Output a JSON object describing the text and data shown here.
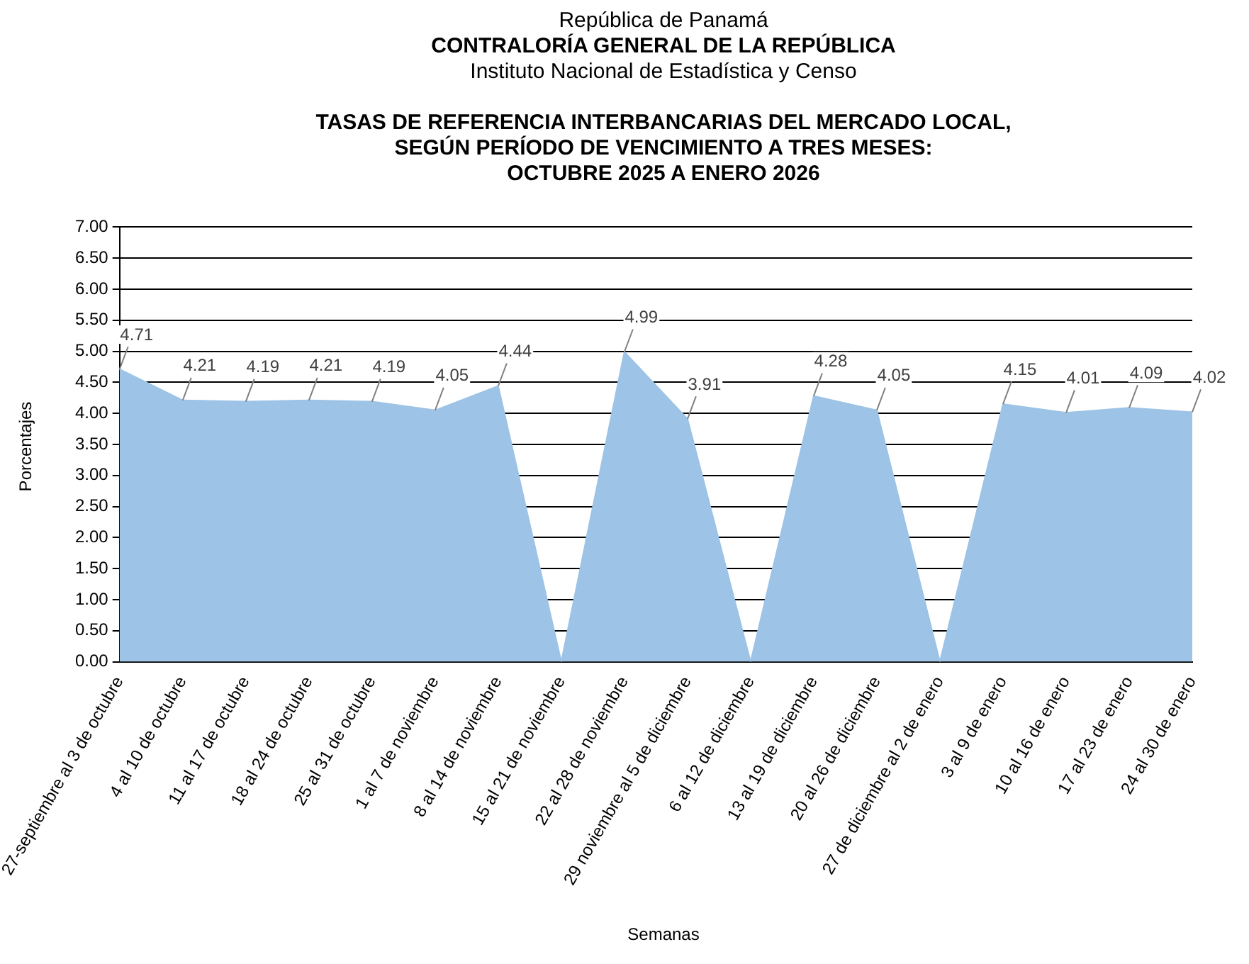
{
  "chart_data": {
    "type": "area",
    "title": "TASAS DE REFERENCIA INTERBANCARIAS DEL MERCADO LOCAL,\nSEGÚN PERÍODO DE VENCIMIENTO A TRES MESES:\nOCTUBRE 2025 A ENERO 2026",
    "annotations": [
      "República de Panamá",
      "CONTRALORÍA GENERAL DE LA REPÚBLICA",
      "Instituto  Nacional de Estadística y Censo"
    ],
    "xlabel": "Semanas",
    "ylabel": "Porcentajes",
    "categories": [
      "27-septiembre al 3 de octubre",
      "4 al 10 de octubre",
      "11 al 17 de octubre",
      "18 al 24 de octubre",
      "25 al 31 de octubre",
      "1 al 7 de noviembre",
      "8 al 14 de noviembre",
      "15 al 21 de noviembre",
      "22 al 28 de noviembre",
      "29 noviembre al 5 de diciembre",
      "6 al 12 de diciembre",
      "13 al 19 de diciembre",
      "20 al 26 de diciembre",
      "27 de diciembre al 2 de enero",
      "3 al 9 de enero",
      "10 al 16 de enero",
      "17 al 23 de enero",
      "24 al 30 de enero"
    ],
    "series": [
      {
        "color": "#9dc3e6",
        "values": [
          4.71,
          4.21,
          4.19,
          4.21,
          4.19,
          4.05,
          4.44,
          0,
          4.99,
          3.91,
          0,
          4.28,
          4.05,
          0,
          4.15,
          4.01,
          4.09,
          4.02
        ],
        "value_labels": [
          "4.71",
          "4.21",
          "4.19",
          "4.21",
          "4.19",
          "4.05",
          "4.44",
          null,
          "4.99",
          "3.91",
          null,
          "4.28",
          "4.05",
          null,
          "4.15",
          "4.01",
          "4.09",
          "4.02"
        ]
      }
    ],
    "ylim": [
      0,
      7
    ],
    "yticks": [
      {
        "value": 0,
        "label": "0.00"
      },
      {
        "value": 0.5,
        "label": "0.50"
      },
      {
        "value": 1,
        "label": "1.00"
      },
      {
        "value": 1.5,
        "label": "1.50"
      },
      {
        "value": 2,
        "label": "2.00"
      },
      {
        "value": 2.5,
        "label": "2.50"
      },
      {
        "value": 3,
        "label": "3.00"
      },
      {
        "value": 3.5,
        "label": "3.50"
      },
      {
        "value": 4,
        "label": "4.00"
      },
      {
        "value": 4.5,
        "label": "4.50"
      },
      {
        "value": 5,
        "label": "5.00"
      },
      {
        "value": 5.5,
        "label": "5.50"
      },
      {
        "value": 6,
        "label": "6.00"
      },
      {
        "value": 6.5,
        "label": "6.50"
      },
      {
        "value": 7,
        "label": "7.00"
      }
    ],
    "grid": "y",
    "legend": false,
    "marker": "none"
  }
}
